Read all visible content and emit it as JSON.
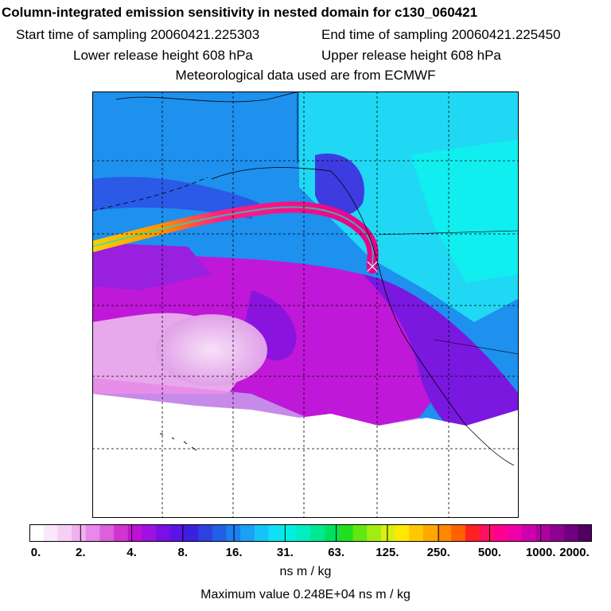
{
  "title": "Column-integrated emission sensitivity in nested domain for c130_060421",
  "sampling": {
    "start": "Start time of sampling 20060421.225303",
    "end": "End time of sampling 20060421.225450"
  },
  "release": {
    "lower": "Lower release height  608 hPa",
    "upper": "Upper release height  608 hPa"
  },
  "meteo": "Meteorological data used are from ECMWF",
  "colorbar": {
    "tick_labels": [
      "0.",
      "2.",
      "4.",
      "8.",
      "16.",
      "31.",
      "63.",
      "125.",
      "250.",
      "500.",
      "1000.",
      "2000."
    ],
    "colors": [
      "#ffffff",
      "#fbe7fb",
      "#f6cff6",
      "#efb0ef",
      "#e888e8",
      "#de5ede",
      "#d234d2",
      "#c010d6",
      "#a010e0",
      "#7a10e6",
      "#5a14e6",
      "#3c20e0",
      "#2e40e0",
      "#2060e6",
      "#1c80ee",
      "#1aa0f4",
      "#14c4f8",
      "#10e0f6",
      "#00f0e0",
      "#00eec0",
      "#00e890",
      "#00e060",
      "#20e020",
      "#60e810",
      "#a0ee10",
      "#d8f010",
      "#ffe800",
      "#ffc800",
      "#ffa800",
      "#ff8800",
      "#ff6000",
      "#ff2020",
      "#ff1060",
      "#ff0090",
      "#f000a8",
      "#d000b0",
      "#b000a0",
      "#900090",
      "#700080",
      "#500060"
    ],
    "unit": "ns m / kg"
  },
  "max_value": "Maximum value  0.248E+04 ns m / kg",
  "map": {
    "grid": "dashed",
    "release_marker": "cross",
    "dominant_colors": {
      "ocean_background": "#1e90ee",
      "high_latitude": "#10e8f0",
      "southern_plume": "#c018d8",
      "empty_area": "#ffffff",
      "trajectory_band": "#ff0090"
    }
  }
}
